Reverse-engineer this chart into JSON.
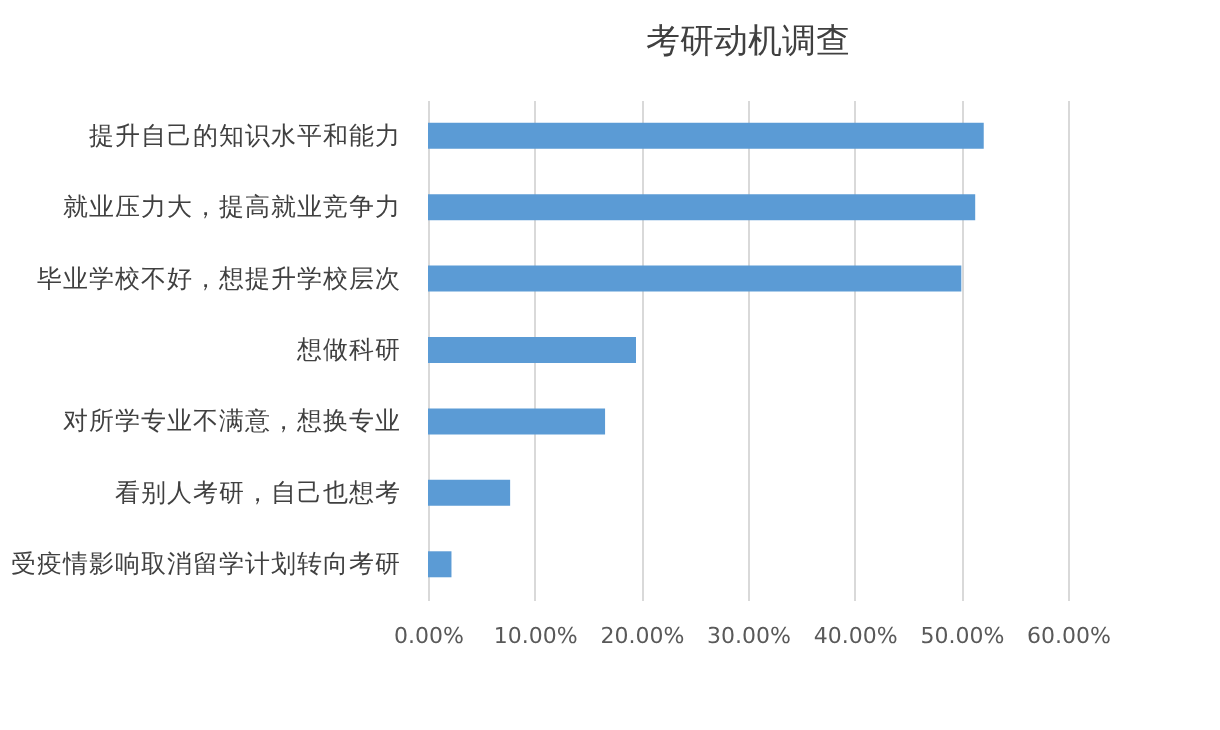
{
  "chart_data": {
    "type": "bar",
    "orientation": "horizontal",
    "title": "考研动机调查",
    "categories": [
      "提升自己的知识水平和能力",
      "就业压力大，提高就业竞争力",
      "毕业学校不好，想提升学校层次",
      "想做科研",
      "对所学专业不满意，想换专业",
      "看别人考研，自己也想考",
      "受疫情影响取消留学计划转向考研"
    ],
    "values": [
      52.1,
      51.3,
      50.0,
      19.5,
      16.6,
      7.7,
      2.2
    ],
    "color": "#5b9bd5",
    "xlim": [
      0,
      60
    ],
    "xticks": [
      {
        "value": 0,
        "label": "0.00%"
      },
      {
        "value": 10,
        "label": "10.00%"
      },
      {
        "value": 20,
        "label": "20.00%"
      },
      {
        "value": 30,
        "label": "30.00%"
      },
      {
        "value": 40,
        "label": "40.00%"
      },
      {
        "value": 50,
        "label": "50.00%"
      },
      {
        "value": 60,
        "label": "60.00%"
      }
    ],
    "grid": "x"
  }
}
